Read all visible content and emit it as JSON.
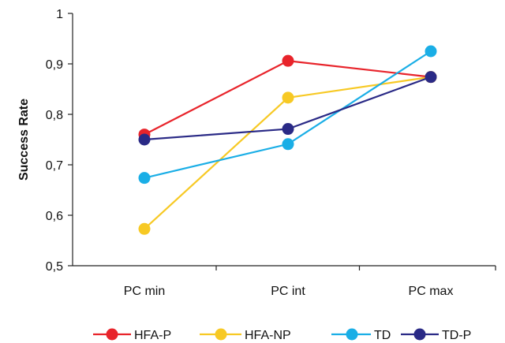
{
  "chart_data": {
    "type": "line",
    "title": "",
    "xlabel": "",
    "ylabel": "Success Rate",
    "categories": [
      "PC min",
      "PC int",
      "PC max"
    ],
    "ylim": [
      0.5,
      1
    ],
    "yticks": [
      0.5,
      0.6,
      0.7,
      0.8,
      0.9,
      1
    ],
    "ytick_labels": [
      "0,5",
      "0,6",
      "0,7",
      "0,8",
      "0,9",
      "1"
    ],
    "grid": false,
    "legend_position": "bottom",
    "series": [
      {
        "name": "HFA-P",
        "color": "#e8242b",
        "values": [
          0.76,
          0.906,
          0.874
        ]
      },
      {
        "name": "HFA-NP",
        "color": "#f7c924",
        "values": [
          0.573,
          0.833,
          0.874
        ]
      },
      {
        "name": "TD",
        "color": "#1aaee6",
        "values": [
          0.674,
          0.741,
          0.925
        ]
      },
      {
        "name": "TD-P",
        "color": "#2a2a86",
        "values": [
          0.75,
          0.771,
          0.874
        ]
      }
    ]
  }
}
